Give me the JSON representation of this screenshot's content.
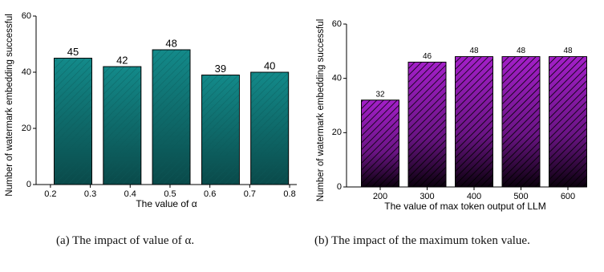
{
  "chart_data": [
    {
      "type": "bar",
      "xlabel": "The value of α",
      "ylabel": "Number of watermark embedding successful",
      "categories": [
        null,
        null,
        null,
        null,
        null
      ],
      "values": [
        45,
        42,
        48,
        39,
        40
      ],
      "color": "#138a8a",
      "xlim": [
        0.164,
        0.818
      ],
      "xticks": [
        0.2,
        0.3,
        0.4,
        0.5,
        0.6,
        0.7,
        0.8
      ],
      "ylim": [
        0,
        60
      ],
      "yticks": [
        0,
        20,
        40,
        60
      ],
      "caption": "(a) The impact of value of α."
    },
    {
      "type": "bar",
      "xlabel": "The value of max token output of LLM",
      "ylabel": "Number of watermark embedding successful",
      "categories": [
        "200",
        "300",
        "400",
        "500",
        "600"
      ],
      "values": [
        32,
        46,
        48,
        48,
        48
      ],
      "color": "#a31fc8",
      "ylim": [
        0,
        60
      ],
      "yticks": [
        0,
        20,
        40,
        60
      ],
      "caption": "(b) The impact of the maximum token value."
    }
  ]
}
